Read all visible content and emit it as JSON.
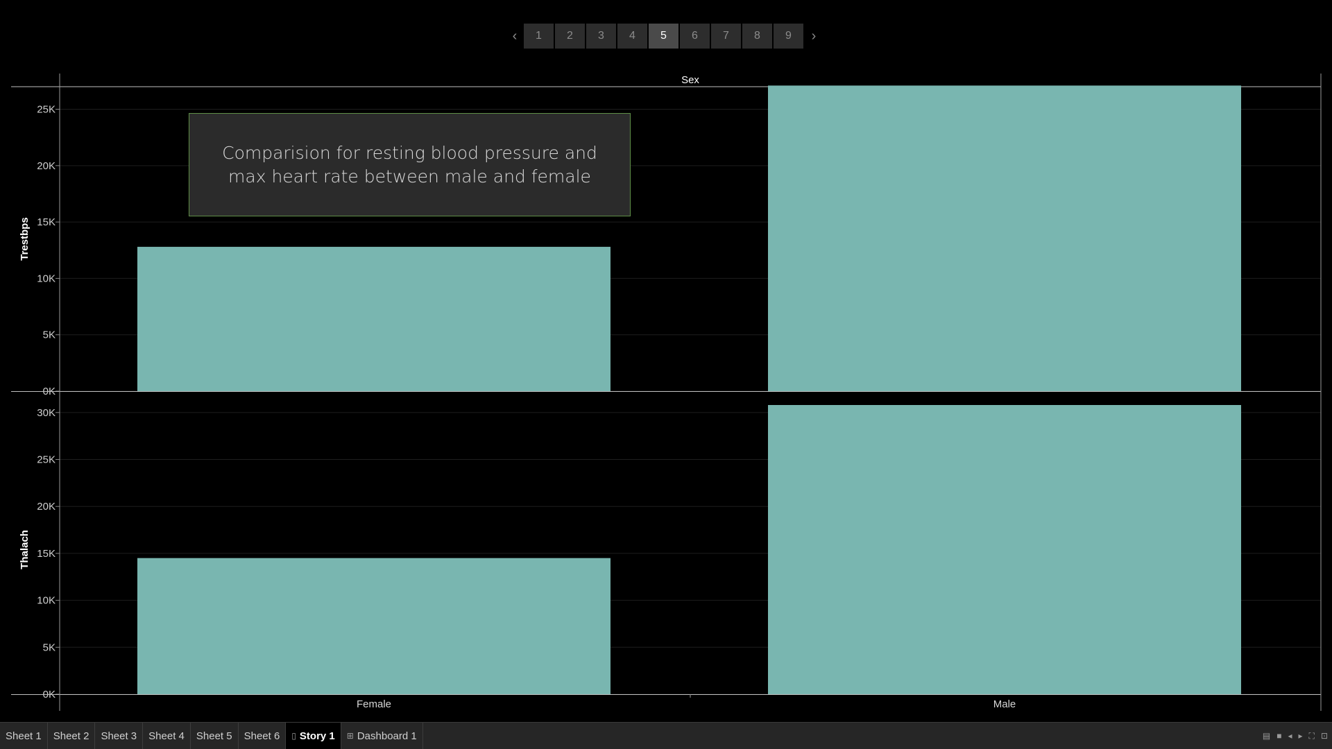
{
  "story_nav": {
    "prev_icon": "chevron-left-icon",
    "next_icon": "chevron-right-icon",
    "pages": [
      "1",
      "2",
      "3",
      "4",
      "5",
      "6",
      "7",
      "8",
      "9"
    ],
    "active_page": "5"
  },
  "caption": "Comparision for resting blood pressure and max heart rate between male and female",
  "chart_data": {
    "type": "bar",
    "column_header": "Sex",
    "categories": [
      "Female",
      "Male"
    ],
    "series": [
      {
        "name": "Trestbps",
        "values": [
          12800,
          27100
        ],
        "ylim": [
          0,
          27000
        ],
        "ticks": [
          "0K",
          "5K",
          "10K",
          "15K",
          "20K",
          "25K"
        ],
        "tick_values": [
          0,
          5000,
          10000,
          15000,
          20000,
          25000
        ]
      },
      {
        "name": "Thalach",
        "values": [
          14500,
          30800
        ],
        "ylim": [
          0,
          30800
        ],
        "ticks": [
          "0K",
          "5K",
          "10K",
          "15K",
          "20K",
          "25K",
          "30K"
        ],
        "tick_values": [
          0,
          5000,
          10000,
          15000,
          20000,
          25000,
          30000
        ]
      }
    ],
    "bar_color": "#79b6b0",
    "grid": true
  },
  "tabs": [
    {
      "label": "Sheet 1"
    },
    {
      "label": "Sheet 2"
    },
    {
      "label": "Sheet 3"
    },
    {
      "label": "Sheet 4"
    },
    {
      "label": "Sheet 5"
    },
    {
      "label": "Sheet 6"
    },
    {
      "label": "Story 1",
      "icon": "story-icon",
      "active": true
    },
    {
      "label": "Dashboard 1",
      "icon": "dashboard-icon"
    }
  ],
  "tools": [
    "show-filmstrip-icon",
    "show-tabs-icon",
    "previous-sheet-icon",
    "next-sheet-icon",
    "fullscreen-icon",
    "presentation-mode-icon"
  ]
}
